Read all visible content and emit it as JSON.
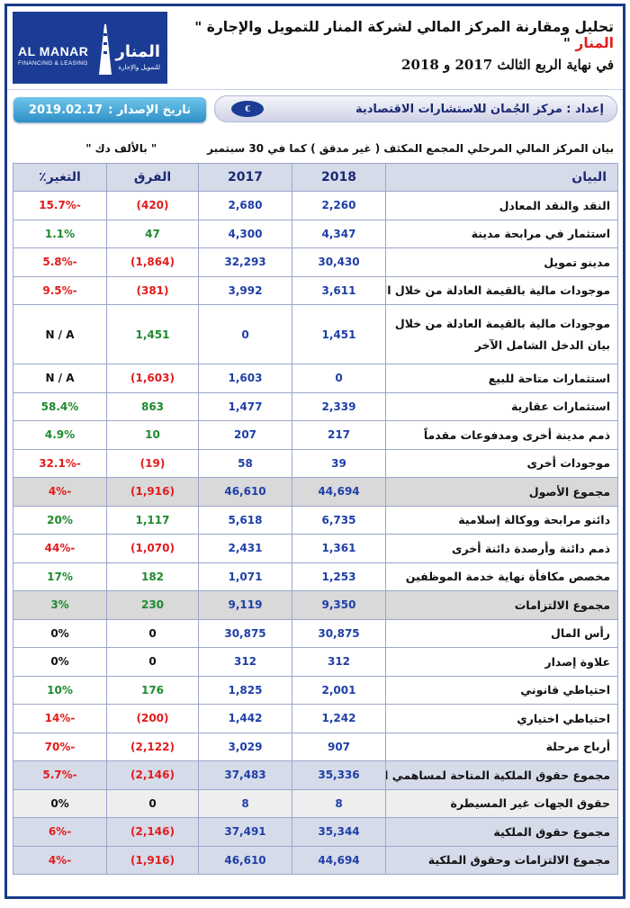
{
  "header": {
    "title_part1": "تحليل ومقارنة المركز المالي لشركة المنار للتمويل والإجارة \"",
    "title_accent": "المنار",
    "title_part2": "\"",
    "subtitle": "في نهاية الربع الثالث 2017 و 2018",
    "logo": {
      "en": "AL MANAR",
      "en_sub": "FINANCING & LEASING",
      "ar": "المنار",
      "ar_sub": "للتمويل والإجارة"
    }
  },
  "infobar": {
    "date_label": "تاريخ الإصدار :",
    "date_value": "2019.02.17",
    "prepared_by": "إعداد : مركز الجُمان للاستشارات الاقتصادية",
    "emblem": "€"
  },
  "table": {
    "caption": "بيان المركز المالي المرحلي المجمع المكثف ( غير مدقق ) كما في 30 سبتمبر",
    "unit": "\" بالألف دك \"",
    "columns": [
      "البيان",
      "2018",
      "2017",
      "الفرق",
      "التغير٪"
    ],
    "rows": [
      {
        "item": "النقد والنقد المعادل",
        "y2018": "2,260",
        "y2017": "2,680",
        "diff": "(420)",
        "change": "-15.7%",
        "sign": "neg"
      },
      {
        "item": "استثمار في مرابحة مدينة",
        "y2018": "4,347",
        "y2017": "4,300",
        "diff": "47",
        "change": "1.1%",
        "sign": "pos"
      },
      {
        "item": "مدينو تمويل",
        "y2018": "30,430",
        "y2017": "32,293",
        "diff": "(1,864)",
        "change": "-5.8%",
        "sign": "neg"
      },
      {
        "item": "موجودات مالية بالقيمة العادلة من خلال الربح والخسارة",
        "y2018": "3,611",
        "y2017": "3,992",
        "diff": "(381)",
        "change": "-9.5%",
        "sign": "neg"
      },
      {
        "item": "موجودات مالية بالقيمة العادلة من خلال بيان الدخل الشامل الآخر",
        "y2018": "1,451",
        "y2017": "0",
        "diff": "1,451",
        "change": "N / A",
        "sign": "na_pos",
        "tall": true
      },
      {
        "item": "استثمارات متاحة للبيع",
        "y2018": "0",
        "y2017": "1,603",
        "diff": "(1,603)",
        "change": "N / A",
        "sign": "na_neg"
      },
      {
        "item": "استثمارات عقارية",
        "y2018": "2,339",
        "y2017": "1,477",
        "diff": "863",
        "change": "58.4%",
        "sign": "pos"
      },
      {
        "item": "ذمم مدينة أخرى ومدفوعات مقدماً",
        "y2018": "217",
        "y2017": "207",
        "diff": "10",
        "change": "4.9%",
        "sign": "pos"
      },
      {
        "item": "موجودات أخرى",
        "y2018": "39",
        "y2017": "58",
        "diff": "(19)",
        "change": "-32.1%",
        "sign": "neg"
      },
      {
        "item": "مجموع الأصول",
        "y2018": "44,694",
        "y2017": "46,610",
        "diff": "(1,916)",
        "change": "-4%",
        "sign": "neg",
        "shade": "gray"
      },
      {
        "item": "دائنو مرابحة ووكالة إسلامية",
        "y2018": "6,735",
        "y2017": "5,618",
        "diff": "1,117",
        "change": "20%",
        "sign": "pos"
      },
      {
        "item": "ذمم دائنة وأرصدة دائنة أخرى",
        "y2018": "1,361",
        "y2017": "2,431",
        "diff": "(1,070)",
        "change": "-44%",
        "sign": "neg"
      },
      {
        "item": "مخصص مكافأة نهاية خدمة الموظفين",
        "y2018": "1,253",
        "y2017": "1,071",
        "diff": "182",
        "change": "17%",
        "sign": "pos"
      },
      {
        "item": "مجموع الالتزامات",
        "y2018": "9,350",
        "y2017": "9,119",
        "diff": "230",
        "change": "3%",
        "sign": "pos",
        "shade": "gray"
      },
      {
        "item": "رأس المال",
        "y2018": "30,875",
        "y2017": "30,875",
        "diff": "0",
        "change": "0%",
        "sign": "zero"
      },
      {
        "item": "علاوة إصدار",
        "y2018": "312",
        "y2017": "312",
        "diff": "0",
        "change": "0%",
        "sign": "zero"
      },
      {
        "item": "احتياطي قانوني",
        "y2018": "2,001",
        "y2017": "1,825",
        "diff": "176",
        "change": "10%",
        "sign": "pos"
      },
      {
        "item": "احتياطي اختياري",
        "y2018": "1,242",
        "y2017": "1,442",
        "diff": "(200)",
        "change": "-14%",
        "sign": "neg"
      },
      {
        "item": "أرباح مرحلة",
        "y2018": "907",
        "y2017": "3,029",
        "diff": "(2,122)",
        "change": "-70%",
        "sign": "neg"
      },
      {
        "item": "مجموع حقوق الملكية المتاحة لمساهمي الشركة الأم",
        "y2018": "35,336",
        "y2017": "37,483",
        "diff": "(2,146)",
        "change": "-5.7%",
        "sign": "neg",
        "shade": "blue"
      },
      {
        "item": "حقوق الجهات غير المسيطرة",
        "y2018": "8",
        "y2017": "8",
        "diff": "0",
        "change": "0%",
        "sign": "zero",
        "shade": "lightgray"
      },
      {
        "item": "مجموع حقوق الملكية",
        "y2018": "35,344",
        "y2017": "37,491",
        "diff": "(2,146)",
        "change": "-6%",
        "sign": "neg",
        "shade": "blue"
      },
      {
        "item": "مجموع الالتزامات وحقوق الملكية",
        "y2018": "44,694",
        "y2017": "46,610",
        "diff": "(1,916)",
        "change": "-4%",
        "sign": "neg",
        "shade": "blue"
      }
    ]
  },
  "colors": {
    "border": "#1a3a8a",
    "number": "#1f3fa8",
    "positive": "#1f8a2e",
    "negative": "#e31b1b",
    "header_fill": "#d6dbea",
    "total_fill": "#d9d9d9"
  }
}
